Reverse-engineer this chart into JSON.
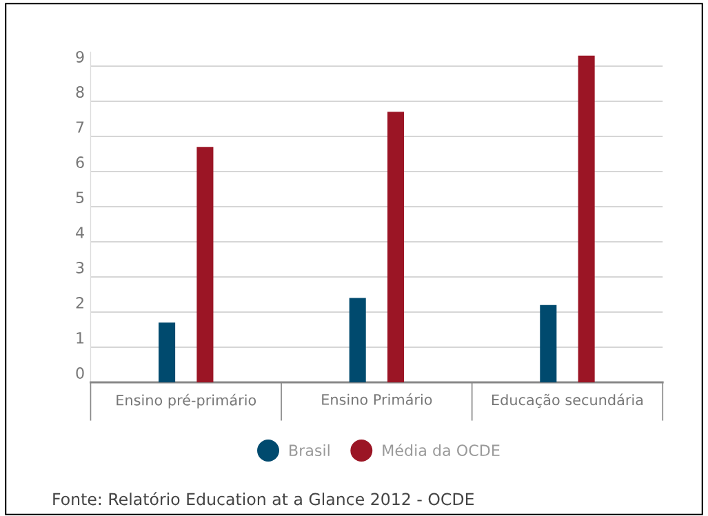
{
  "chart_data": {
    "type": "bar",
    "categories": [
      "Ensino pré-primário",
      "Ensino Primário",
      "Educação secundária"
    ],
    "series": [
      {
        "name": "Brasil",
        "color": "#004a6e",
        "values": [
          1.7,
          2.4,
          2.2
        ]
      },
      {
        "name": "Média da OCDE",
        "color": "#9b1525",
        "values": [
          6.7,
          7.7,
          9.3
        ]
      }
    ],
    "ylim": [
      0,
      9.4
    ],
    "yticks": [
      0,
      1,
      2,
      3,
      4,
      5,
      6,
      7,
      8,
      9
    ],
    "grid": "y",
    "legend": "bottom",
    "annotations": [
      "Fonte: Relatório Education at a Glance 2012 - OCDE"
    ]
  }
}
